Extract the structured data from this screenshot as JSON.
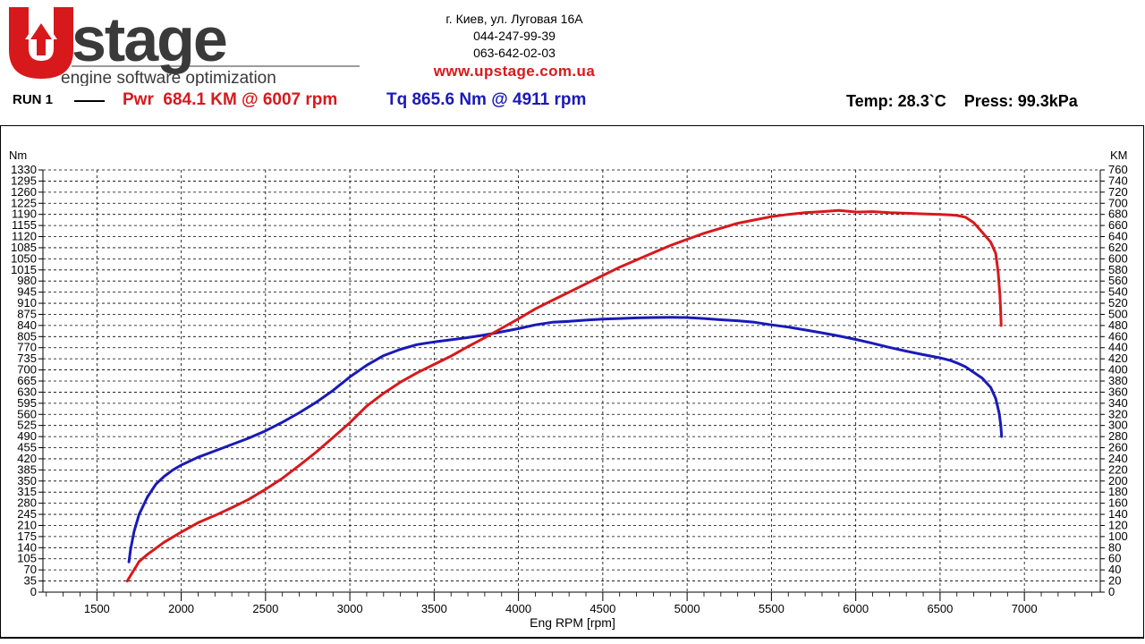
{
  "header": {
    "logo_text": "Upstage",
    "logo_tagline": "engine software optimization",
    "address": "г. Киев, ул. Луговая 16А",
    "phone1": "044-247-99-39",
    "phone2": "063-642-02-03",
    "url": "www.upstage.com.ua"
  },
  "run": {
    "label": "RUN 1",
    "pwr": "Pwr  684.1 KM @ 6007 rpm",
    "tq": "Tq 865.6 Nm @ 4911 rpm",
    "conditions": "Temp: 28.3`C    Press: 99.3kPa"
  },
  "colors": {
    "power": "#d7191c",
    "torque": "#1a1ab8",
    "brand": "#d7191c",
    "logo_dark": "#3a3a3a"
  },
  "chart_data": {
    "type": "line",
    "xlabel": "Eng RPM [rpm]",
    "ylabel_left": "Nm",
    "ylabel_right": "KM",
    "xlim": [
      1180,
      7450
    ],
    "x_ticks": [
      1500,
      2000,
      2500,
      3000,
      3500,
      4000,
      4500,
      5000,
      5500,
      6000,
      6500,
      7000
    ],
    "y_left_lim": [
      0,
      1330
    ],
    "y_left_step": 35,
    "y_right_lim": [
      0,
      760
    ],
    "y_right_step": 20,
    "grid": true,
    "series": [
      {
        "name": "Tq",
        "axis": "left",
        "color": "#1a1ab8",
        "points": [
          [
            1690,
            95
          ],
          [
            1700,
            135
          ],
          [
            1720,
            190
          ],
          [
            1750,
            245
          ],
          [
            1800,
            300
          ],
          [
            1850,
            340
          ],
          [
            1900,
            365
          ],
          [
            1950,
            385
          ],
          [
            2000,
            400
          ],
          [
            2100,
            425
          ],
          [
            2200,
            445
          ],
          [
            2300,
            465
          ],
          [
            2400,
            485
          ],
          [
            2500,
            508
          ],
          [
            2600,
            535
          ],
          [
            2700,
            565
          ],
          [
            2800,
            598
          ],
          [
            2900,
            635
          ],
          [
            3000,
            678
          ],
          [
            3100,
            715
          ],
          [
            3200,
            745
          ],
          [
            3300,
            765
          ],
          [
            3400,
            780
          ],
          [
            3500,
            788
          ],
          [
            3600,
            795
          ],
          [
            3700,
            802
          ],
          [
            3800,
            810
          ],
          [
            3900,
            820
          ],
          [
            4000,
            830
          ],
          [
            4100,
            842
          ],
          [
            4200,
            850
          ],
          [
            4300,
            853
          ],
          [
            4400,
            857
          ],
          [
            4500,
            860
          ],
          [
            4600,
            862
          ],
          [
            4700,
            864
          ],
          [
            4800,
            865
          ],
          [
            4911,
            865.6
          ],
          [
            5000,
            865
          ],
          [
            5100,
            862
          ],
          [
            5200,
            858
          ],
          [
            5300,
            855
          ],
          [
            5400,
            850
          ],
          [
            5500,
            842
          ],
          [
            5600,
            835
          ],
          [
            5700,
            826
          ],
          [
            5800,
            817
          ],
          [
            5900,
            807
          ],
          [
            6000,
            796
          ],
          [
            6100,
            784
          ],
          [
            6200,
            771
          ],
          [
            6300,
            759
          ],
          [
            6400,
            748
          ],
          [
            6500,
            738
          ],
          [
            6560,
            730
          ],
          [
            6600,
            722
          ],
          [
            6650,
            710
          ],
          [
            6700,
            692
          ],
          [
            6750,
            674
          ],
          [
            6800,
            645
          ],
          [
            6830,
            610
          ],
          [
            6850,
            565
          ],
          [
            6860,
            525
          ],
          [
            6865,
            490
          ]
        ]
      },
      {
        "name": "Pwr",
        "axis": "right",
        "color": "#d7191c",
        "points": [
          [
            1680,
            20
          ],
          [
            1700,
            30
          ],
          [
            1730,
            45
          ],
          [
            1750,
            55
          ],
          [
            1800,
            68
          ],
          [
            1900,
            90
          ],
          [
            2000,
            108
          ],
          [
            2100,
            125
          ],
          [
            2200,
            138
          ],
          [
            2300,
            152
          ],
          [
            2400,
            167
          ],
          [
            2500,
            185
          ],
          [
            2600,
            205
          ],
          [
            2700,
            228
          ],
          [
            2800,
            252
          ],
          [
            2900,
            278
          ],
          [
            3000,
            305
          ],
          [
            3100,
            335
          ],
          [
            3200,
            358
          ],
          [
            3300,
            378
          ],
          [
            3400,
            395
          ],
          [
            3500,
            410
          ],
          [
            3600,
            425
          ],
          [
            3700,
            442
          ],
          [
            3800,
            458
          ],
          [
            3900,
            475
          ],
          [
            4000,
            492
          ],
          [
            4100,
            510
          ],
          [
            4200,
            525
          ],
          [
            4300,
            540
          ],
          [
            4400,
            555
          ],
          [
            4500,
            570
          ],
          [
            4600,
            585
          ],
          [
            4700,
            598
          ],
          [
            4800,
            611
          ],
          [
            4900,
            624
          ],
          [
            5000,
            635
          ],
          [
            5100,
            646
          ],
          [
            5200,
            655
          ],
          [
            5300,
            664
          ],
          [
            5400,
            670
          ],
          [
            5500,
            676
          ],
          [
            5600,
            680
          ],
          [
            5700,
            683
          ],
          [
            5800,
            685
          ],
          [
            5900,
            687
          ],
          [
            6007,
            684.1
          ],
          [
            6100,
            685
          ],
          [
            6200,
            683
          ],
          [
            6300,
            682
          ],
          [
            6400,
            681
          ],
          [
            6500,
            680
          ],
          [
            6560,
            679
          ],
          [
            6600,
            678
          ],
          [
            6650,
            675
          ],
          [
            6700,
            665
          ],
          [
            6750,
            648
          ],
          [
            6800,
            630
          ],
          [
            6830,
            610
          ],
          [
            6845,
            575
          ],
          [
            6855,
            535
          ],
          [
            6860,
            500
          ],
          [
            6862,
            480
          ]
        ]
      }
    ]
  }
}
